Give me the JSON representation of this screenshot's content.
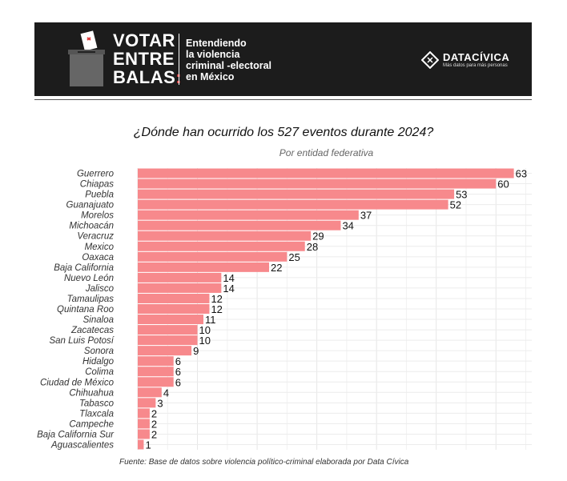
{
  "banner": {
    "logo_lines": [
      "VOTAR",
      "ENTRE",
      "BALAS"
    ],
    "logo_colon": ":",
    "ballot_box_label": "VOTO DE PAPEL",
    "subtitle_lines": [
      "Entendiendo",
      "la violencia",
      "criminal -electoral",
      "en México"
    ],
    "brand_name": "DATACÍVICA",
    "brand_tagline": "Más datos para más personas",
    "bg_color": "#1c1c1c",
    "accent_color": "#ff4d4d"
  },
  "source_note": "Fuente: Base de datos sobre violencia político-criminal elaborada por Data Cívica",
  "chart_data": {
    "type": "bar",
    "orientation": "horizontal",
    "title": "¿Dónde han ocurrido los 527 eventos durante 2024?",
    "subtitle": "Por entidad federativa",
    "categories": [
      "Guerrero",
      "Chiapas",
      "Puebla",
      "Guanajuato",
      "Morelos",
      "Michoacán",
      "Veracruz",
      "Mexico",
      "Oaxaca",
      "Baja California",
      "Nuevo León",
      "Jalisco",
      "Tamaulipas",
      "Quintana Roo",
      "Sinaloa",
      "Zacatecas",
      "San Luis Potosí",
      "Sonora",
      "Hidalgo",
      "Colima",
      "Ciudad de México",
      "Chihuahua",
      "Tabasco",
      "Tlaxcala",
      "Campeche",
      "Baja California Sur",
      "Aguascalientes"
    ],
    "values": [
      63,
      60,
      53,
      52,
      37,
      34,
      29,
      28,
      25,
      22,
      14,
      14,
      12,
      12,
      11,
      10,
      10,
      9,
      6,
      6,
      6,
      4,
      3,
      2,
      2,
      2,
      1
    ],
    "xlim": [
      0,
      66
    ],
    "bar_color": "#f7898c",
    "grid": true,
    "data_labels": true
  }
}
